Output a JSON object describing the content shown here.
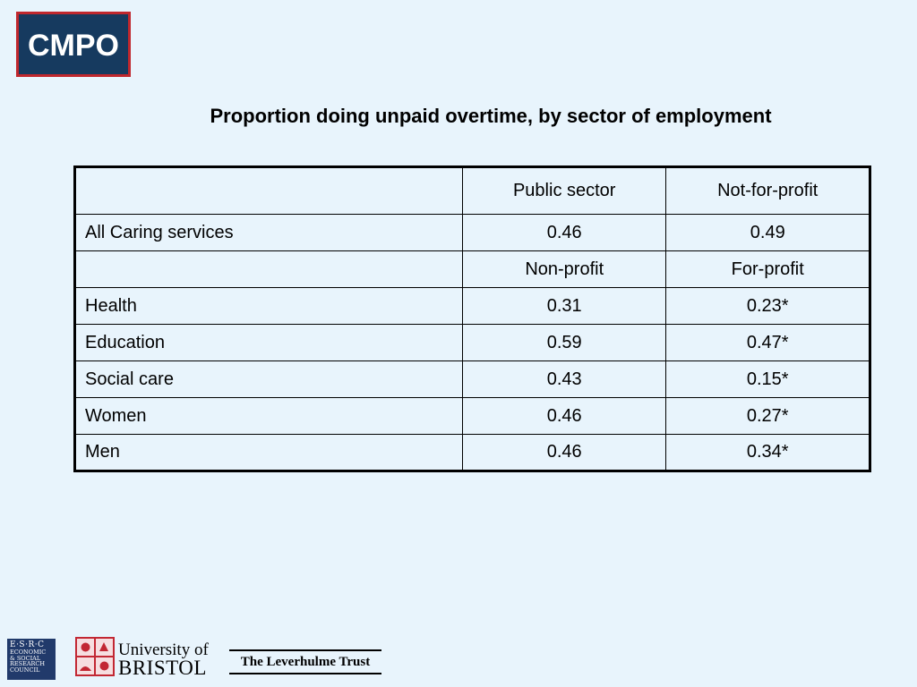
{
  "logo": {
    "text": "CMPO",
    "border_color": "#c0272d",
    "background_color": "#163a5f"
  },
  "title": "Proportion doing unpaid overtime, by sector of employment",
  "table": {
    "rows": [
      {
        "label": "",
        "col1": "Public sector",
        "col2": "Not-for-profit"
      },
      {
        "label": "All Caring services",
        "col1": "0.46",
        "col2": "0.49"
      },
      {
        "label": "",
        "col1": "Non-profit",
        "col2": "For-profit"
      },
      {
        "label": "Health",
        "col1": "0.31",
        "col2": "0.23*"
      },
      {
        "label": "Education",
        "col1": "0.59",
        "col2": "0.47*"
      },
      {
        "label": "Social care",
        "col1": "0.43",
        "col2": "0.15*"
      },
      {
        "label": "Women",
        "col1": "0.46",
        "col2": "0.27*"
      },
      {
        "label": "Men",
        "col1": "0.46",
        "col2": "0.34*"
      }
    ]
  },
  "footer": {
    "esrc": {
      "top": "E·S·R·C",
      "lines": [
        "ECONOMIC",
        "& SOCIAL",
        "RESEARCH",
        "COUNCIL"
      ]
    },
    "bristol": {
      "line1": "University of",
      "line2": "BRISTOL",
      "color": "#c22733"
    },
    "leverhulme": "The Leverhulme Trust"
  }
}
